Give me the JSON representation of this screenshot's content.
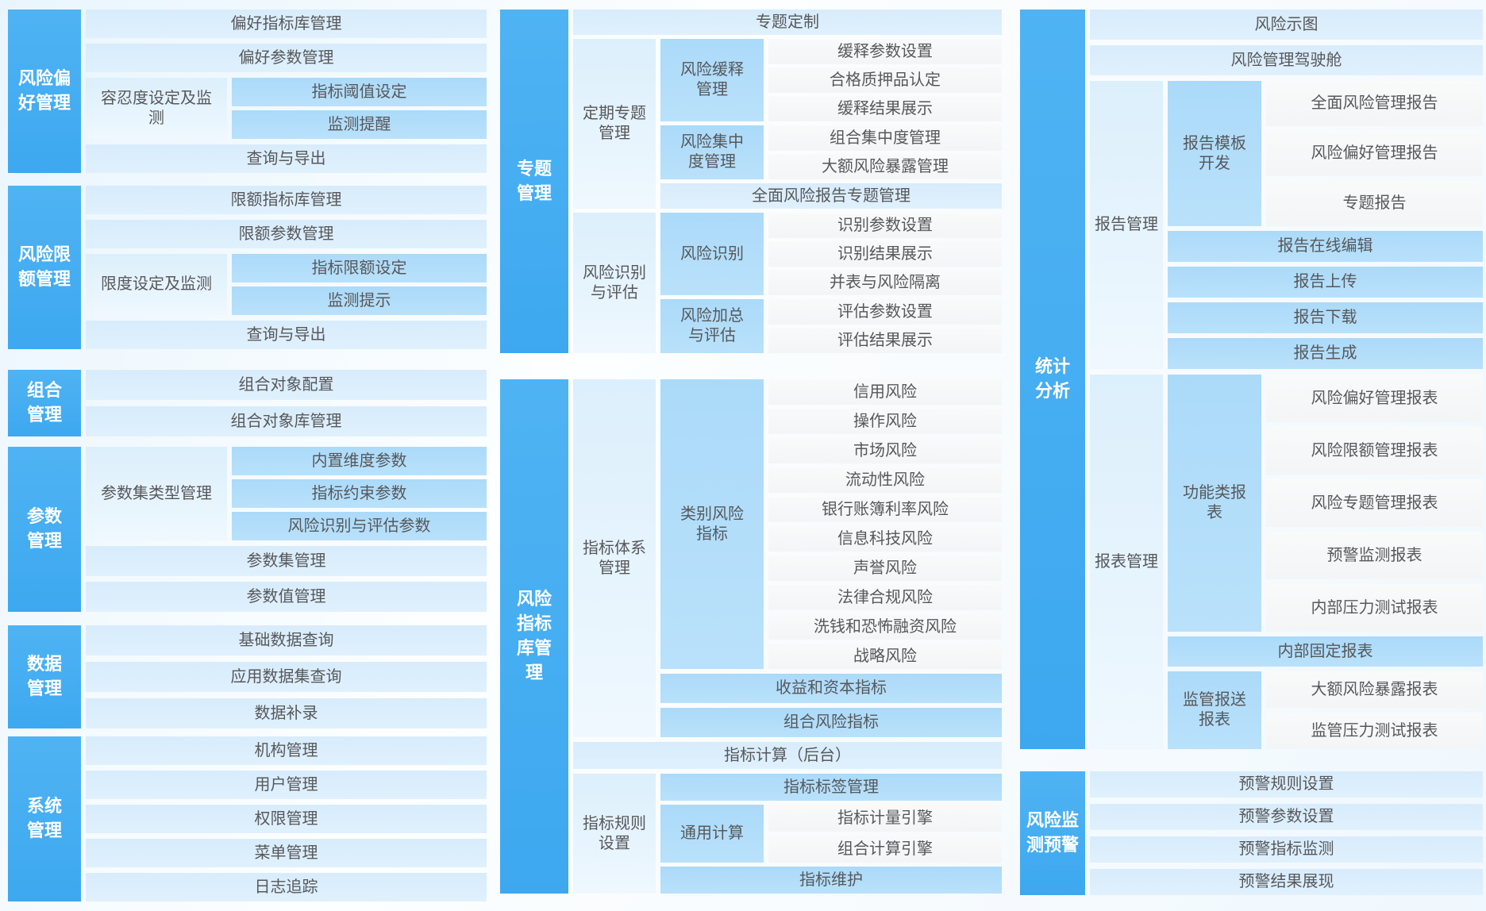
{
  "colors": {
    "label_blue": "#45ACF1",
    "light_blue": "#D9EDFC",
    "medium_blue": "#AEDCFA",
    "leaf_gray": "#F7F8F8",
    "text_dark": "#57585A",
    "label_text": "#FFFFFF"
  },
  "left_column": {
    "risk_preference": {
      "label": "风险偏好管理",
      "row1": "偏好指标库管理",
      "row2": "偏好参数管理",
      "tolerance_label": "容忍度设定及监测",
      "tolerance_item1": "指标阈值设定",
      "tolerance_item2": "监测提醒",
      "row4": "查询与导出"
    },
    "risk_limit": {
      "label": "风险限额管理",
      "row1": "限额指标库管理",
      "row2": "限额参数管理",
      "limit_label": "限度设定及监测",
      "limit_item1": "指标限额设定",
      "limit_item2": "监测提示",
      "row4": "查询与导出"
    },
    "portfolio": {
      "label": "组合管理",
      "row1": "组合对象配置",
      "row2": "组合对象库管理"
    },
    "parameter": {
      "label": "参数管理",
      "paramset_label": "参数集类型管理",
      "paramset_item1": "内置维度参数",
      "paramset_item2": "指标约束参数",
      "paramset_item3": "风险识别与评估参数",
      "row2": "参数集管理",
      "row3": "参数值管理"
    },
    "data_mgmt": {
      "label": "数据管理",
      "row1": "基础数据查询",
      "row2": "应用数据集查询",
      "row3": "数据补录"
    },
    "system": {
      "label": "系统管理",
      "row1": "机构管理",
      "row2": "用户管理",
      "row3": "权限管理",
      "row4": "菜单管理",
      "row5": "日志追踪"
    }
  },
  "middle_column": {
    "topic": {
      "label": "专题管理",
      "custom_row": "专题定制",
      "periodic": {
        "label": "定期专题管理",
        "mitigation": {
          "label": "风险缓释管理",
          "items": [
            "缓释参数设置",
            "合格质押品认定",
            "缓释结果展示"
          ]
        },
        "concentration": {
          "label": "风险集中度管理",
          "items": [
            "组合集中度管理",
            "大额风险暴露管理"
          ]
        },
        "full_report_row": "全面风险报告专题管理"
      },
      "identification": {
        "label": "风险识别与评估",
        "identify": {
          "label": "风险识别",
          "items": [
            "识别参数设置",
            "识别结果展示",
            "并表与风险隔离"
          ]
        },
        "aggregate": {
          "label": "风险加总与评估",
          "items": [
            "评估参数设置",
            "评估结果展示"
          ]
        }
      }
    },
    "indicator_library": {
      "label": "风险指标库管理",
      "system_mgmt": {
        "label": "指标体系管理",
        "category": {
          "label": "类别风险指标",
          "items": [
            "信用风险",
            "操作风险",
            "市场风险",
            "流动性风险",
            "银行账簿利率风险",
            "信息科技风险",
            "声誉风险",
            "法律合规风险",
            "洗钱和恐怖融资风险",
            "战略风险"
          ]
        },
        "income_row": "收益和资本指标",
        "portfolio_row": "组合风险指标"
      },
      "calc_row": "指标计算（后台）",
      "rule_setting": {
        "label": "指标规则设置",
        "tag_row": "指标标签管理",
        "general_calc": {
          "label": "通用计算",
          "items": [
            "指标计量引擎",
            "组合计算引擎"
          ]
        },
        "maintain_row": "指标维护"
      }
    }
  },
  "right_column": {
    "statistics": {
      "label": "统计分析",
      "row1": "风险示图",
      "row2": "风险管理驾驶舱",
      "report_mgmt": {
        "label": "报告管理",
        "template_dev": {
          "label": "报告模板开发",
          "items": [
            "全面风险管理报告",
            "风险偏好管理报告",
            "专题报告"
          ]
        },
        "rows": [
          "报告在线编辑",
          "报告上传",
          "报告下载",
          "报告生成"
        ]
      },
      "form_mgmt": {
        "label": "报表管理",
        "functional": {
          "label": "功能类报表",
          "items": [
            "风险偏好管理报表",
            "风险限额管理报表",
            "风险专题管理报表",
            "预警监测报表",
            "内部压力测试报表"
          ]
        },
        "fixed_row": "内部固定报表",
        "regulatory": {
          "label": "监管报送报表",
          "items": [
            "大额风险暴露报表",
            "监管压力测试报表"
          ]
        }
      }
    },
    "monitoring": {
      "label": "风险监测预警",
      "rows": [
        "预警规则设置",
        "预警参数设置",
        "预警指标监测",
        "预警结果展现"
      ]
    }
  }
}
